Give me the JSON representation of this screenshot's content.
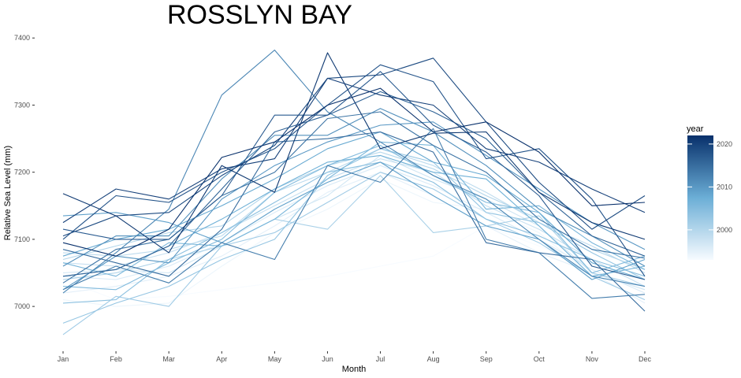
{
  "chart_data": {
    "type": "line",
    "title": "ROSSLYN BAY",
    "xlabel": "Month",
    "ylabel": "Relative Sea Level (mm)",
    "categories": [
      "Jan",
      "Feb",
      "Mar",
      "Apr",
      "May",
      "Jun",
      "Jul",
      "Aug",
      "Sep",
      "Oct",
      "Nov",
      "Dec"
    ],
    "y_ticks": [
      7000,
      7100,
      7200,
      7300,
      7400
    ],
    "ylim": [
      6945,
      7412
    ],
    "grid": false,
    "legend": {
      "title": "year",
      "position": "right",
      "ticks": [
        2000,
        2010,
        2020
      ],
      "range": [
        1993,
        2022
      ],
      "color_low": "#f7fbff",
      "color_mid": "#6baed6",
      "color_high": "#08306b"
    },
    "series": [
      {
        "year": 1993,
        "values": [
          7040,
          7010,
          7015,
          7025,
          7035,
          7045,
          7060,
          7075,
          7120,
          7090,
          7060,
          7035
        ]
      },
      {
        "year": 1994,
        "values": [
          7010,
          7000,
          7005,
          7060,
          7110,
          7145,
          7190,
          7155,
          7145,
          7110,
          7045,
          7010
        ]
      },
      {
        "year": 1995,
        "values": [
          7020,
          7030,
          7045,
          7075,
          7120,
          7170,
          7200,
          7165,
          7120,
          7080,
          7050,
          7005
        ]
      },
      {
        "year": 1996,
        "values": [
          7045,
          7040,
          7060,
          7095,
          7140,
          7180,
          7210,
          7180,
          7140,
          7100,
          7055,
          7020
        ]
      },
      {
        "year": 1997,
        "values": [
          7050,
          7055,
          7050,
          7090,
          7130,
          7165,
          7225,
          7190,
          7160,
          7120,
          7050,
          7025
        ]
      },
      {
        "year": 1998,
        "values": [
          7065,
          7060,
          7080,
          7110,
          7150,
          7190,
          7220,
          7200,
          7150,
          7115,
          7070,
          7030
        ]
      },
      {
        "year": 1999,
        "values": [
          7080,
          7075,
          7085,
          7105,
          7170,
          7200,
          7235,
          7210,
          7170,
          7125,
          7090,
          7050
        ]
      },
      {
        "year": 2000,
        "values": [
          7070,
          7090,
          7110,
          7120,
          7175,
          7210,
          7230,
          7205,
          7165,
          7130,
          7085,
          7055
        ]
      },
      {
        "year": 2001,
        "values": [
          7040,
          7050,
          7070,
          7090,
          7130,
          7115,
          7195,
          7110,
          7120,
          7135,
          7050,
          7030
        ]
      },
      {
        "year": 2002,
        "values": [
          6958,
          7015,
          7000,
          7090,
          7110,
          7155,
          7200,
          7175,
          7130,
          7095,
          7045,
          7010
        ]
      },
      {
        "year": 2003,
        "values": [
          6975,
          7005,
          7030,
          7070,
          7100,
          7195,
          7235,
          7215,
          7140,
          7125,
          7080,
          7040
        ]
      },
      {
        "year": 2004,
        "values": [
          7005,
          7010,
          7070,
          7110,
          7155,
          7200,
          7215,
          7185,
          7130,
          7105,
          7070,
          7045
        ]
      },
      {
        "year": 2005,
        "values": [
          7030,
          7025,
          7065,
          7100,
          7170,
          7210,
          7240,
          7195,
          7155,
          7140,
          7050,
          7075
        ]
      },
      {
        "year": 2006,
        "values": [
          7065,
          7045,
          7095,
          7090,
          7130,
          7190,
          7245,
          7240,
          7145,
          7150,
          7095,
          7055
        ]
      },
      {
        "year": 2007,
        "values": [
          7045,
          7055,
          7090,
          7130,
          7175,
          7215,
          7225,
          7200,
          7190,
          7120,
          7045,
          7060
        ]
      },
      {
        "year": 2008,
        "values": [
          7075,
          7100,
          7115,
          7150,
          7190,
          7235,
          7260,
          7215,
          7195,
          7140,
          7065,
          7040
        ]
      },
      {
        "year": 2009,
        "values": [
          7135,
          7140,
          7125,
          7095,
          7145,
          7185,
          7215,
          7165,
          7120,
          7100,
          7040,
          7070
        ]
      },
      {
        "year": 2010,
        "values": [
          7025,
          7075,
          7065,
          7160,
          7210,
          7245,
          7270,
          7275,
          7225,
          7175,
          7125,
          7085
        ]
      },
      {
        "year": 2011,
        "values": [
          7060,
          7105,
          7105,
          7190,
          7255,
          7255,
          7295,
          7260,
          7210,
          7145,
          7105,
          7060
        ]
      },
      {
        "year": 2012,
        "values": [
          7020,
          7080,
          7145,
          7315,
          7382,
          7290,
          7245,
          7195,
          7160,
          7100,
          7045,
          7030
        ]
      },
      {
        "year": 2013,
        "values": [
          7025,
          7060,
          7035,
          7095,
          7070,
          7210,
          7185,
          7265,
          7100,
          7080,
          7012,
          7018
        ]
      },
      {
        "year": 2014,
        "values": [
          7035,
          7085,
          7100,
          7165,
          7200,
          7280,
          7290,
          7240,
          7200,
          7130,
          7085,
          7072
        ]
      },
      {
        "year": 2015,
        "values": [
          7085,
          7065,
          7045,
          7115,
          7245,
          7250,
          7260,
          7230,
          7095,
          7080,
          7070,
          6993
        ]
      },
      {
        "year": 2016,
        "values": [
          7045,
          7055,
          7090,
          7175,
          7260,
          7285,
          7320,
          7290,
          7250,
          7170,
          7105,
          7075
        ]
      },
      {
        "year": 2017,
        "values": [
          7115,
          7100,
          7100,
          7165,
          7285,
          7285,
          7350,
          7270,
          7230,
          7165,
          7060,
          7040
        ]
      },
      {
        "year": 2018,
        "values": [
          7100,
          7165,
          7155,
          7200,
          7235,
          7300,
          7360,
          7335,
          7220,
          7235,
          7160,
          7045
        ]
      },
      {
        "year": 2019,
        "values": [
          7105,
          7135,
          7140,
          7195,
          7240,
          7340,
          7345,
          7370,
          7275,
          7185,
          7115,
          7165
        ]
      },
      {
        "year": 2020,
        "values": [
          7125,
          7175,
          7160,
          7205,
          7220,
          7340,
          7315,
          7300,
          7235,
          7215,
          7175,
          7140
        ]
      },
      {
        "year": 2021,
        "values": [
          7168,
          7135,
          7080,
          7210,
          7170,
          7378,
          7235,
          7258,
          7260,
          7170,
          7125,
          7100
        ]
      },
      {
        "year": 2022,
        "values": [
          7095,
          7075,
          7115,
          7222,
          7245,
          7300,
          7325,
          7260,
          7275,
          7230,
          7150,
          7155
        ]
      }
    ]
  }
}
